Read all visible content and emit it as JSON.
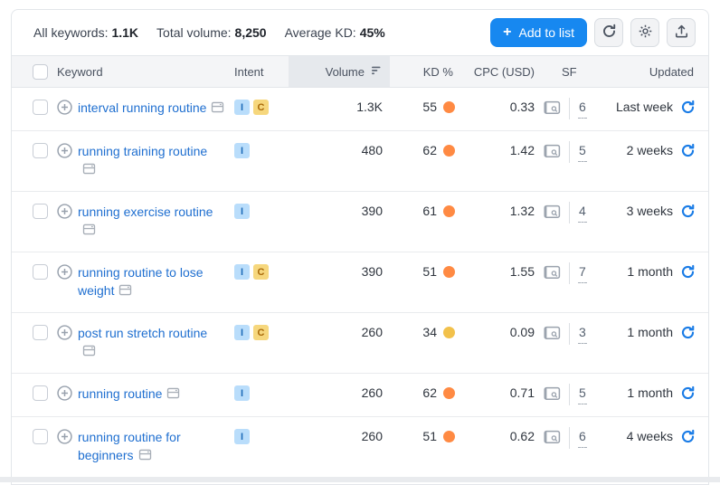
{
  "toolbar": {
    "all_keywords_label": "All keywords:",
    "all_keywords_value": "1.1K",
    "total_volume_label": "Total volume:",
    "total_volume_value": "8,250",
    "average_kd_label": "Average KD:",
    "average_kd_value": "45%",
    "add_to_list_label": "Add to list",
    "add_to_list_plus": "+"
  },
  "colors": {
    "accent_blue": "#1788f0",
    "link_blue": "#1f6fd0",
    "refresh_blue": "#1a7ce6",
    "kd_orange": "#ff8a43",
    "kd_yellow": "#f2c14b",
    "intent_i_bg": "#b9ddfb",
    "intent_i_fg": "#1e6bb8",
    "intent_c_bg": "#f6d77d",
    "intent_c_fg": "#a96a0a",
    "vol_header_bg": "#e6e9ed"
  },
  "table": {
    "headers": {
      "keyword": "Keyword",
      "intent": "Intent",
      "volume": "Volume",
      "kd": "KD %",
      "cpc": "CPC (USD)",
      "sf": "SF",
      "updated": "Updated"
    },
    "sorted_column": "volume",
    "rows": [
      {
        "keyword": "interval running routine",
        "intents": [
          "I",
          "C"
        ],
        "volume": "1.3K",
        "kd": "55",
        "kd_level": "orange",
        "cpc": "0.33",
        "sf": "6",
        "updated": "Last week"
      },
      {
        "keyword": "running training routine",
        "intents": [
          "I"
        ],
        "volume": "480",
        "kd": "62",
        "kd_level": "orange",
        "cpc": "1.42",
        "sf": "5",
        "updated": "2 weeks"
      },
      {
        "keyword": "running exercise routine",
        "intents": [
          "I"
        ],
        "volume": "390",
        "kd": "61",
        "kd_level": "orange",
        "cpc": "1.32",
        "sf": "4",
        "updated": "3 weeks"
      },
      {
        "keyword": "running routine to lose weight",
        "intents": [
          "I",
          "C"
        ],
        "volume": "390",
        "kd": "51",
        "kd_level": "orange",
        "cpc": "1.55",
        "sf": "7",
        "updated": "1 month"
      },
      {
        "keyword": "post run stretch routine",
        "intents": [
          "I",
          "C"
        ],
        "volume": "260",
        "kd": "34",
        "kd_level": "yellow",
        "cpc": "0.09",
        "sf": "3",
        "updated": "1 month"
      },
      {
        "keyword": "running routine",
        "intents": [
          "I"
        ],
        "volume": "260",
        "kd": "62",
        "kd_level": "orange",
        "cpc": "0.71",
        "sf": "5",
        "updated": "1 month"
      },
      {
        "keyword": "running routine for beginners",
        "intents": [
          "I"
        ],
        "volume": "260",
        "kd": "51",
        "kd_level": "orange",
        "cpc": "0.62",
        "sf": "6",
        "updated": "4 weeks"
      }
    ]
  }
}
